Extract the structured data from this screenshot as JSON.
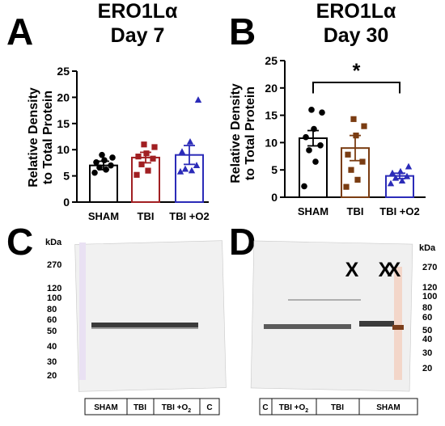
{
  "panels": {
    "A": {
      "letter": "A"
    },
    "B": {
      "letter": "B"
    },
    "C": {
      "letter": "C"
    },
    "D": {
      "letter": "D"
    }
  },
  "chart_data": [
    {
      "type": "bar",
      "panel": "A",
      "title": [
        "ERO1Lα",
        "Day 7"
      ],
      "ylabel": [
        "Relative Density",
        "to Total Protein"
      ],
      "xlabel": "",
      "ylim": [
        0,
        25
      ],
      "yticks": [
        0,
        5,
        10,
        15,
        20,
        25
      ],
      "categories": [
        "SHAM",
        "TBI",
        "TBI +O2"
      ],
      "values": [
        7.0,
        8.5,
        9.0
      ],
      "sem": [
        0.8,
        1.0,
        1.8
      ],
      "colors": [
        "#000000",
        "#a11f22",
        "#2b2bb8"
      ],
      "points": [
        [
          5.6,
          6.2,
          6.6,
          7.0,
          7.6,
          8.0,
          8.5,
          9.0
        ],
        [
          5.2,
          6.0,
          7.2,
          8.3,
          8.7,
          9.3,
          10.5,
          11.0
        ],
        [
          5.8,
          6.0,
          6.3,
          7.0,
          9.6,
          11.5,
          19.5
        ]
      ],
      "markers": [
        "circle",
        "square",
        "triangle"
      ],
      "grid": false
    },
    {
      "type": "bar",
      "panel": "B",
      "title": [
        "ERO1Lα",
        "Day 30"
      ],
      "ylabel": [
        "Relative Density",
        "to Total Protein"
      ],
      "xlabel": "",
      "ylim": [
        0,
        25
      ],
      "yticks": [
        0,
        5,
        10,
        15,
        20,
        25
      ],
      "categories": [
        "SHAM",
        "TBI",
        "TBI +O2"
      ],
      "values": [
        10.8,
        9.0,
        3.9
      ],
      "sem": [
        1.4,
        2.3,
        0.5
      ],
      "colors": [
        "#000000",
        "#7a3c12",
        "#2b2bb8"
      ],
      "points": [
        [
          2.0,
          6.5,
          8.6,
          9.5,
          11.0,
          12.5,
          15.5,
          16.0
        ],
        [
          1.9,
          3.2,
          5.0,
          6.5,
          7.8,
          11.3,
          13.0,
          14.3
        ],
        [
          2.5,
          3.0,
          3.5,
          3.8,
          4.4,
          4.7,
          5.6
        ]
      ],
      "markers": [
        "circle",
        "square",
        "triangle"
      ],
      "significance": {
        "label": "*",
        "between": [
          "SHAM",
          "TBI +O2"
        ],
        "level": 21
      }
    }
  ],
  "blots": {
    "C": {
      "kda_label": "kDa",
      "ladder": [
        "270",
        "120",
        "100",
        "80",
        "60",
        "50",
        "40",
        "30",
        "20"
      ],
      "groups": [
        "SHAM",
        "TBI",
        "TBI +O",
        "C"
      ],
      "subscript": "2"
    },
    "D": {
      "kda_label": "kDa",
      "ladder": [
        "270",
        "120",
        "100",
        "80",
        "60",
        "50",
        "40",
        "30",
        "20"
      ],
      "groups": [
        "C",
        "TBI +O",
        "TBI",
        "SHAM"
      ],
      "subscript": "2",
      "marks": [
        "X",
        "X",
        "X"
      ]
    }
  }
}
